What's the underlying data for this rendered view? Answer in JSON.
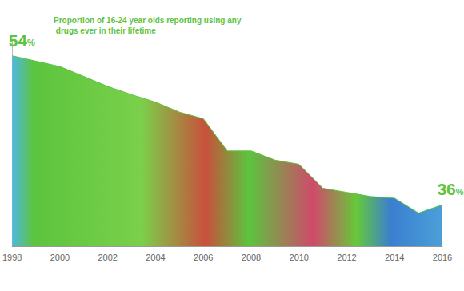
{
  "chart_data": {
    "type": "area",
    "title": "Proportion of 16-24 year olds reporting using any drugs ever in their lifetime",
    "x": [
      1998,
      2000,
      2001,
      2002,
      2003,
      2004,
      2005,
      2006,
      2007,
      2008,
      2009,
      2010,
      2011,
      2012,
      2013,
      2014,
      2015,
      2016
    ],
    "values": [
      54,
      52.7,
      51.5,
      50.3,
      49.3,
      48.4,
      47.2,
      46.4,
      42.5,
      42.5,
      41.4,
      40.9,
      38,
      37.5,
      37,
      36.8,
      35,
      36
    ],
    "value_labels": [
      "54%",
      null,
      null,
      null,
      null,
      null,
      null,
      null,
      null,
      null,
      null,
      null,
      null,
      null,
      null,
      null,
      null,
      "36%"
    ],
    "color": "#5cc43e",
    "xlim": [
      1998,
      2016
    ],
    "xticks": [
      1998,
      2000,
      2002,
      2004,
      2006,
      2008,
      2010,
      2012,
      2014,
      2016
    ],
    "ylim": [
      31,
      56
    ],
    "yticks": [],
    "tick_labels": "x",
    "grid": false
  }
}
